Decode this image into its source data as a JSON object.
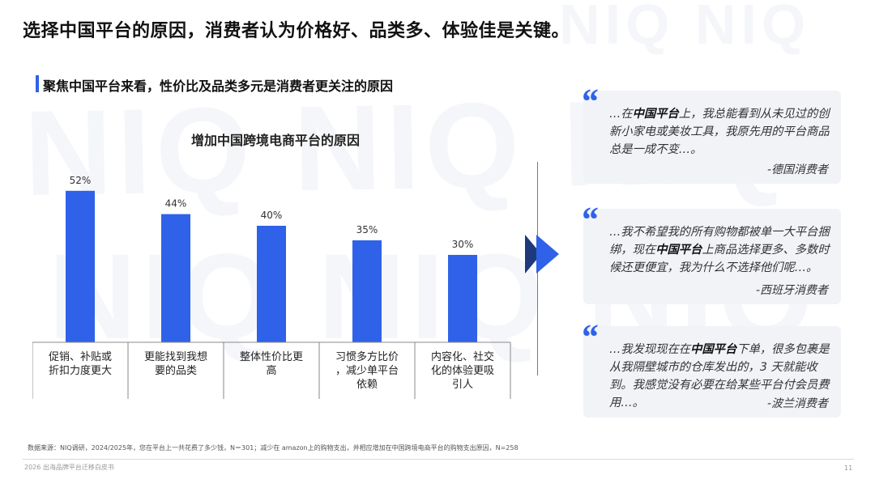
{
  "watermark": {
    "text1": "NIQ NIQ NIQ",
    "text2": "NIQ NIQ NIQ",
    "text3": "NIQ NIQ"
  },
  "header": {
    "title": "选择中国平台的原因，消费者认为价格好、品类多、体验佳是关键。",
    "section_title": "聚焦中国平台来看，性价比及品类多元是消费者更关注的原因"
  },
  "chart_data": {
    "type": "bar",
    "title": "增加中国跨境电商平台的原因",
    "categories": [
      [
        "促销、补贴或",
        "折扣力度更大"
      ],
      [
        "更能找到我想",
        "要的品类"
      ],
      [
        "整体性价比更",
        "高"
      ],
      [
        "习惯多方比价",
        "，减少单平台",
        "依赖"
      ],
      [
        "内容化、社交",
        "化的体验更吸",
        "引人"
      ]
    ],
    "values": [
      52,
      44,
      40,
      35,
      30
    ],
    "value_labels": [
      "52%",
      "44%",
      "40%",
      "35%",
      "30%"
    ],
    "ylim": [
      0,
      60
    ],
    "bar_color": "#2f62e8",
    "grid": false,
    "xlabel": "",
    "ylabel": ""
  },
  "quotes": [
    {
      "mark": "“",
      "text_pre": "…在",
      "highlight": "中国平台",
      "text_post": "上，我总能看到从未见过的创新小家电或美妆工具，我原先用的平台商品总是一成不变…。",
      "author": "-德国消费者"
    },
    {
      "mark": "“",
      "text_pre": "…我不希望我的所有购物都被单一大平台捆绑，现在",
      "highlight": "中国平台",
      "text_post": "上商品选择更多、多数时候还更便宜，我为什么不选择他们呢…。",
      "author": "-西班牙消费者"
    },
    {
      "mark": "“",
      "text_pre": "…我发现现在在",
      "highlight": "中国平台",
      "text_post": "下单，很多包裹是从我隔壁城市的仓库发出的，3 天就能收到。我感觉没有必要在给某些平台付会员费用…。",
      "author": "-波兰消费者"
    }
  ],
  "footer": {
    "source": "数据来源：NIQ调研，2024/2025年，您在平台上一共花费了多少钱，N＝301；减少在 amazon上的购物支出，并相应增加在中国跨境电商平台的购物支出原因，N=258",
    "left": "2026 出海品牌平台迁移白皮书",
    "page": "11"
  },
  "colors": {
    "accent": "#2f62e8",
    "card_bg": "#f1f3f7"
  }
}
